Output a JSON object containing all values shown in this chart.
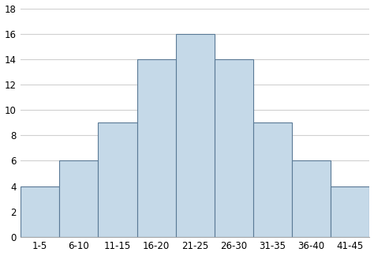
{
  "categories": [
    "1-5",
    "6-10",
    "11-15",
    "16-20",
    "21-25",
    "26-30",
    "31-35",
    "36-40",
    "41-45"
  ],
  "values": [
    4,
    6,
    9,
    14,
    16,
    14,
    9,
    6,
    4
  ],
  "bar_color": "#c5d9e8",
  "bar_edge_color": "#5a7a96",
  "bar_edge_width": 0.8,
  "ylim": [
    0,
    18
  ],
  "yticks": [
    0,
    2,
    4,
    6,
    8,
    10,
    12,
    14,
    16,
    18
  ],
  "grid_color": "#d0d0d0",
  "grid_linewidth": 0.8,
  "background_color": "#ffffff",
  "tick_fontsize": 8.5,
  "bar_width": 1.0
}
